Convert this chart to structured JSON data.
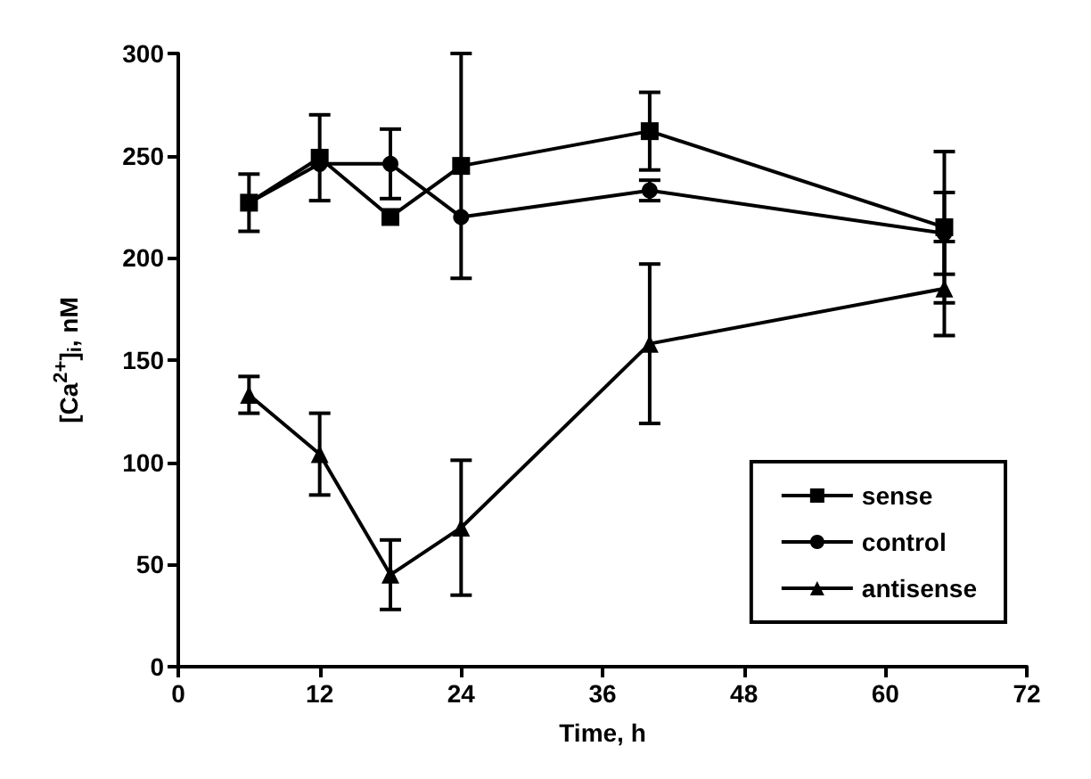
{
  "chart_data": {
    "type": "line",
    "xlabel": "Time, h",
    "ylabel": "[Ca$^{2+}$]$_{i}$, nM",
    "x": [
      6,
      12,
      18,
      24,
      40,
      65
    ],
    "series": [
      {
        "name": "sense",
        "color": "#000000",
        "marker": "square",
        "values": [
          227,
          249,
          220,
          245,
          262,
          215
        ],
        "errors": [
          14,
          21,
          null,
          55,
          19,
          37
        ]
      },
      {
        "name": "control",
        "color": "#000000",
        "marker": "circle",
        "values": [
          227,
          246,
          246,
          220,
          233,
          212
        ],
        "errors": [
          null,
          null,
          17,
          null,
          5,
          20
        ]
      },
      {
        "name": "antisense",
        "color": "#000000",
        "marker": "triangle",
        "values": [
          133,
          104,
          45,
          68,
          158,
          185
        ],
        "errors": [
          9,
          20,
          17,
          33,
          39,
          23
        ]
      }
    ],
    "xlim": [
      0,
      72
    ],
    "xticks": [
      0,
      12,
      24,
      36,
      48,
      60,
      72
    ],
    "ylim": [
      0,
      300
    ],
    "yticks": [
      0,
      50,
      100,
      150,
      200,
      250,
      300
    ],
    "grid": false,
    "legend": "bottom right",
    "line_style": "solid"
  }
}
